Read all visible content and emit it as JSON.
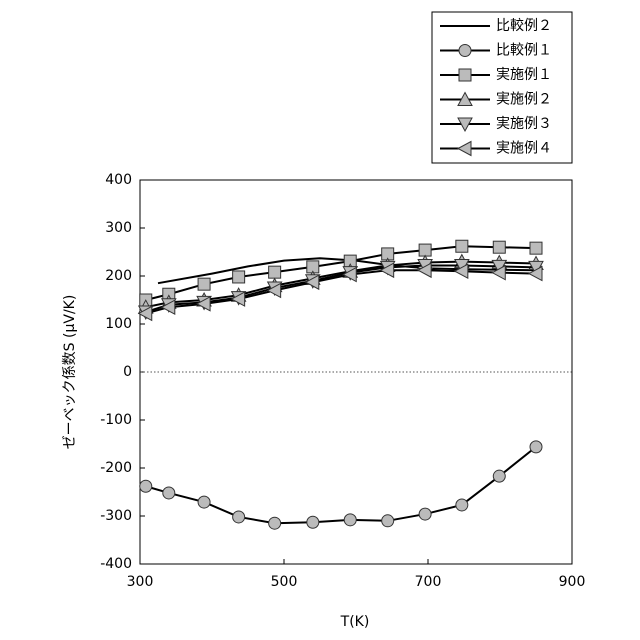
{
  "chart_data": {
    "type": "line",
    "x_label": "T(K)",
    "y_label": "ゼーベック係数S (μV/K)",
    "xlim": [
      300,
      900
    ],
    "xticks": [
      300,
      500,
      700,
      900
    ],
    "ylim": [
      -400,
      400
    ],
    "yticks": [
      -400,
      -300,
      -200,
      -100,
      0,
      100,
      200,
      300,
      400
    ],
    "zero_line": true,
    "legend_position": "top-right",
    "line_color": "#000000",
    "marker_color": "#bbbbbb",
    "series": [
      {
        "name": "比較例２",
        "marker": "none",
        "x": [
          325,
          400,
          450,
          500,
          550,
          600,
          650,
          700,
          750,
          800,
          850
        ],
        "values": [
          185,
          205,
          220,
          232,
          237,
          232,
          222,
          216,
          214,
          213,
          212
        ]
      },
      {
        "name": "比較例１",
        "marker": "circle",
        "x": [
          308,
          340,
          389,
          437,
          487,
          540,
          592,
          644,
          696,
          747,
          799,
          850
        ],
        "values": [
          -238,
          -252,
          -271,
          -302,
          -315,
          -313,
          -308,
          -310,
          -296,
          -277,
          -217,
          -156
        ]
      },
      {
        "name": "実施例１",
        "marker": "square",
        "x": [
          308,
          340,
          389,
          437,
          487,
          540,
          592,
          644,
          696,
          747,
          799,
          850
        ],
        "values": [
          150,
          162,
          183,
          198,
          208,
          219,
          231,
          246,
          254,
          262,
          260,
          258
        ]
      },
      {
        "name": "実施例２",
        "marker": "triangle-up",
        "x": [
          308,
          340,
          389,
          437,
          487,
          540,
          592,
          644,
          696,
          747,
          799,
          850
        ],
        "values": [
          135,
          145,
          150,
          160,
          180,
          195,
          210,
          222,
          228,
          230,
          228,
          226
        ]
      },
      {
        "name": "実施例３",
        "marker": "triangle-down",
        "x": [
          308,
          340,
          389,
          437,
          487,
          540,
          592,
          644,
          696,
          747,
          799,
          850
        ],
        "values": [
          125,
          140,
          145,
          155,
          175,
          190,
          207,
          218,
          222,
          222,
          220,
          218
        ]
      },
      {
        "name": "実施例４",
        "marker": "triangle-left",
        "x": [
          308,
          340,
          389,
          437,
          487,
          540,
          592,
          644,
          696,
          747,
          799,
          850
        ],
        "values": [
          122,
          135,
          142,
          152,
          170,
          187,
          203,
          212,
          212,
          210,
          207,
          205
        ]
      }
    ]
  }
}
